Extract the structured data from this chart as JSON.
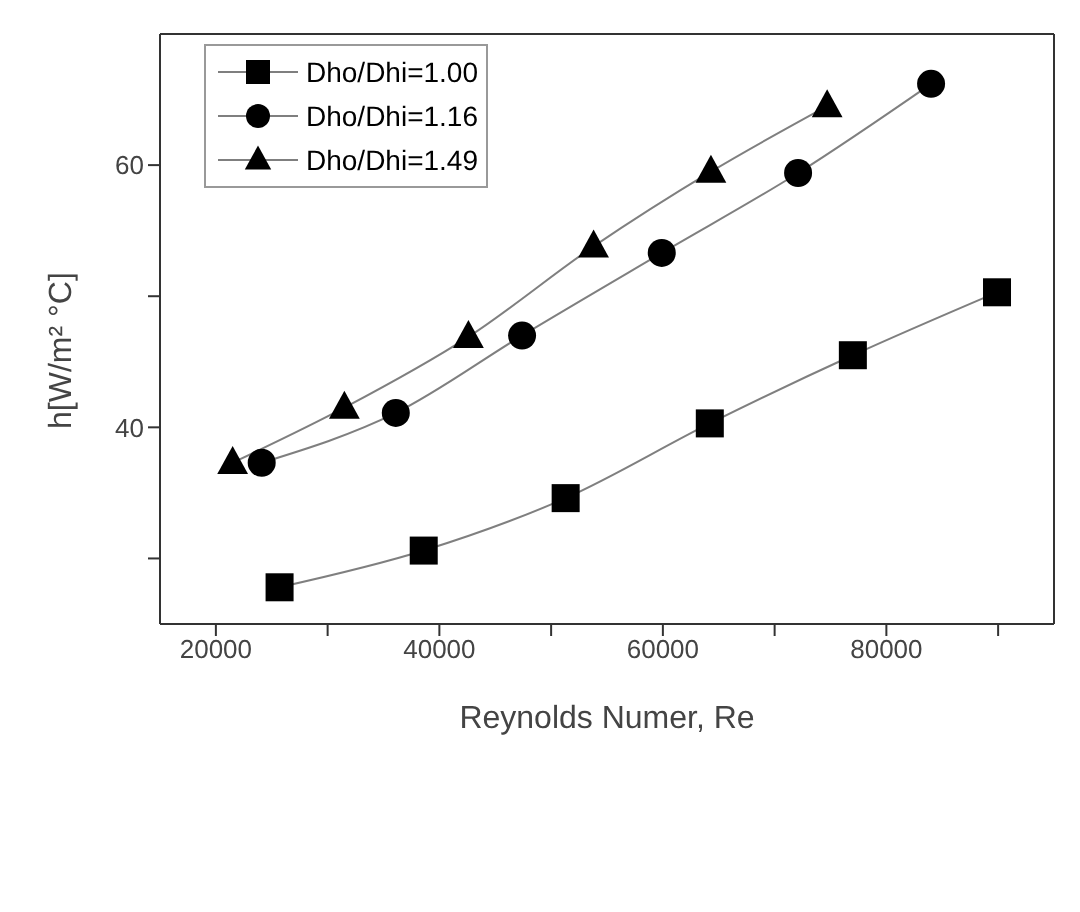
{
  "chart_data": {
    "type": "line",
    "xlabel": "Reynolds Numer, Re",
    "ylabel": "h[W/m² °C]",
    "xlim": [
      15000,
      95000
    ],
    "xticks": [
      20000,
      {
        "value": 30000,
        "label": null
      },
      40000,
      {
        "value": 50000,
        "label": null
      },
      60000,
      {
        "value": 70000,
        "label": null
      },
      80000,
      {
        "value": 90000,
        "label": null
      }
    ],
    "ylim": [
      25,
      70
    ],
    "yticks": [
      {
        "value": 30,
        "label": null
      },
      40,
      {
        "value": 50,
        "label": null
      },
      60
    ],
    "grid": false,
    "legend": "top left",
    "line_style": "solid",
    "series": [
      {
        "name": "Dho/Dhi=1.00",
        "color": "#000000",
        "marker": "square",
        "x": [
          25700,
          38600,
          51300,
          64200,
          77000,
          89900
        ],
        "values": [
          27.8,
          30.6,
          34.6,
          40.3,
          45.5,
          50.3
        ]
      },
      {
        "name": "Dho/Dhi=1.16",
        "color": "#000000",
        "marker": "circle",
        "x": [
          24100,
          36100,
          47400,
          59900,
          72100,
          84000
        ],
        "values": [
          37.3,
          41.1,
          47.0,
          53.3,
          59.4,
          66.2
        ]
      },
      {
        "name": "Dho/Dhi=1.49",
        "color": "#000000",
        "marker": "triangle",
        "x": [
          21500,
          31500,
          42600,
          53800,
          64300,
          74700
        ],
        "values": [
          37.3,
          41.5,
          46.9,
          53.8,
          59.5,
          64.5
        ]
      }
    ]
  }
}
